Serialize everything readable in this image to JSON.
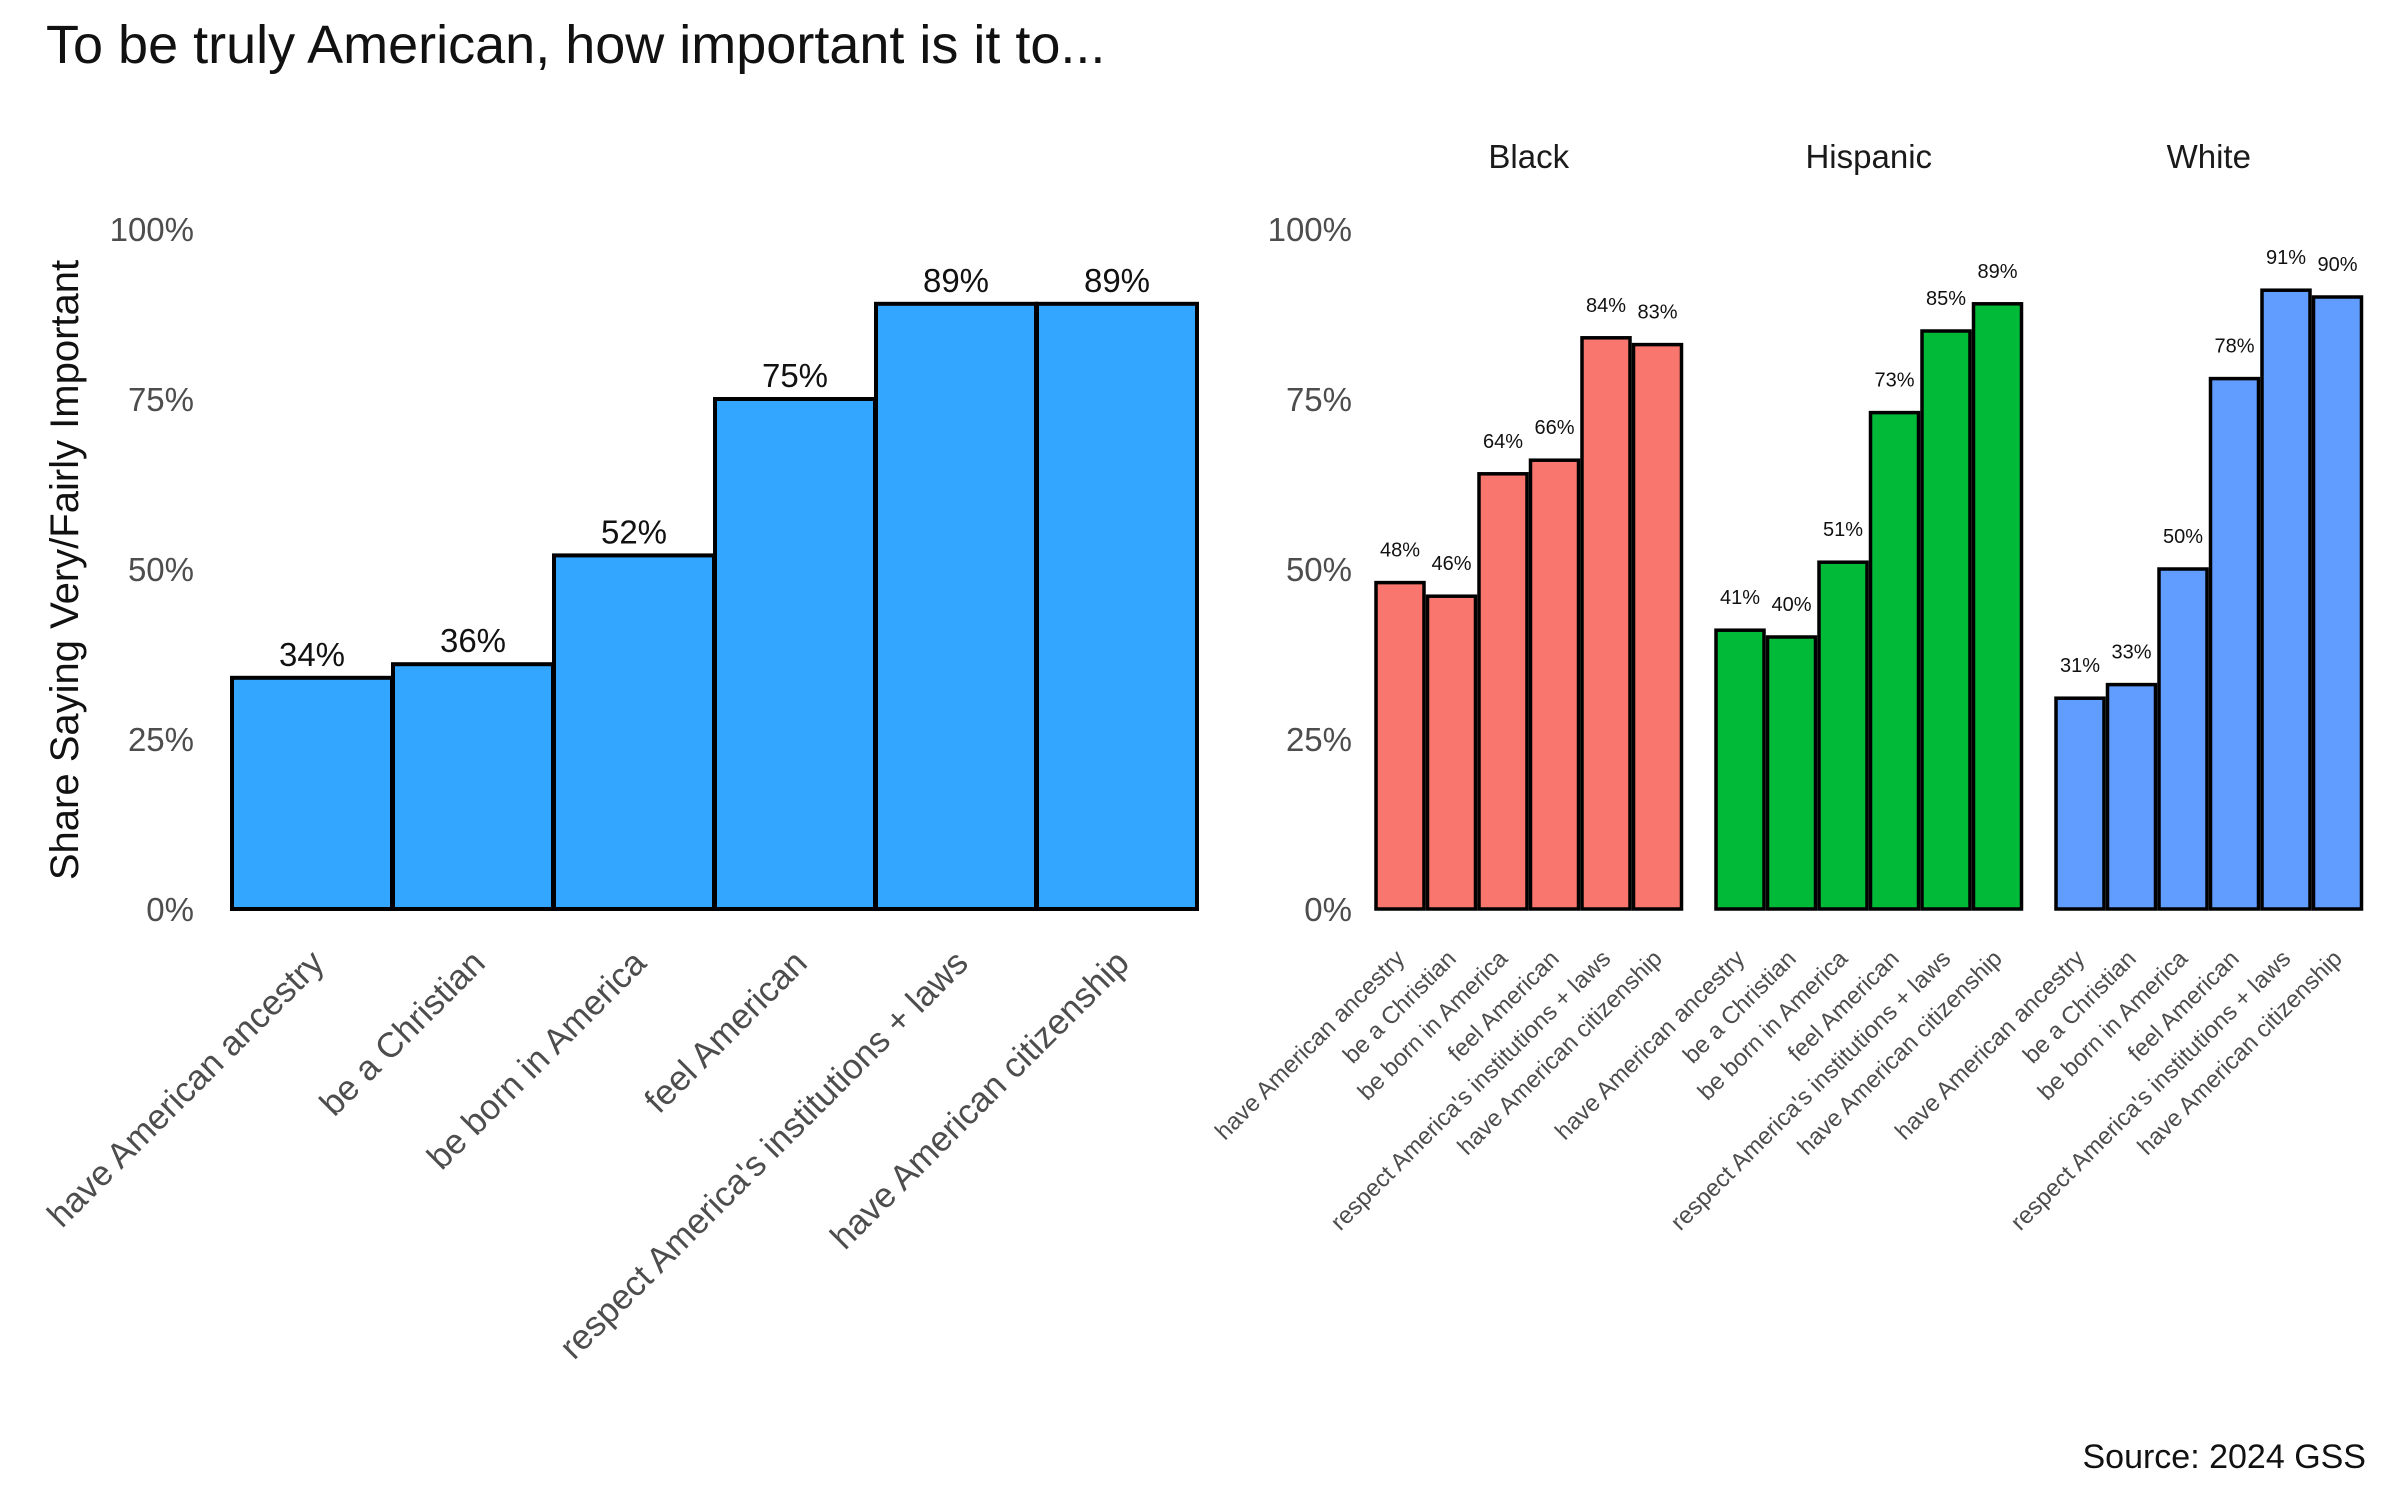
{
  "title": "To be truly American, how important is it to...",
  "source": "Source: 2024 GSS",
  "chart_data": [
    {
      "type": "bar",
      "ylabel": "Share Saying Very/Fairly Important",
      "ylim": [
        0,
        100
      ],
      "yticks": [
        "0%",
        "25%",
        "50%",
        "75%",
        "100%"
      ],
      "grid": false,
      "categories": [
        "have American ancestry",
        "be a Christian",
        "be born in America",
        "feel American",
        "respect America's institutions + laws",
        "have American citizenship"
      ],
      "series": [
        {
          "values": [
            34,
            36,
            52,
            75,
            89,
            89
          ],
          "labels": [
            "34%",
            "36%",
            "52%",
            "75%",
            "89%",
            "89%"
          ],
          "color": "#33a6ff"
        }
      ]
    },
    {
      "type": "bar",
      "ylim": [
        0,
        100
      ],
      "yticks": [
        "0%",
        "25%",
        "50%",
        "75%",
        "100%"
      ],
      "grid": false,
      "categories": [
        "have American ancestry",
        "be a Christian",
        "be born in America",
        "feel American",
        "respect America's institutions + laws",
        "have American citizenship"
      ],
      "facets": [
        {
          "name": "Black",
          "color": "#f8766d",
          "values": [
            48,
            46,
            64,
            66,
            84,
            83
          ],
          "labels": [
            "48%",
            "46%",
            "64%",
            "66%",
            "84%",
            "83%"
          ]
        },
        {
          "name": "Hispanic",
          "color": "#00ba38",
          "values": [
            41,
            40,
            51,
            73,
            85,
            89
          ],
          "labels": [
            "41%",
            "40%",
            "51%",
            "73%",
            "85%",
            "89%"
          ]
        },
        {
          "name": "White",
          "color": "#619cff",
          "values": [
            31,
            33,
            50,
            78,
            91,
            90
          ],
          "labels": [
            "31%",
            "33%",
            "50%",
            "78%",
            "91%",
            "90%"
          ]
        }
      ]
    }
  ]
}
